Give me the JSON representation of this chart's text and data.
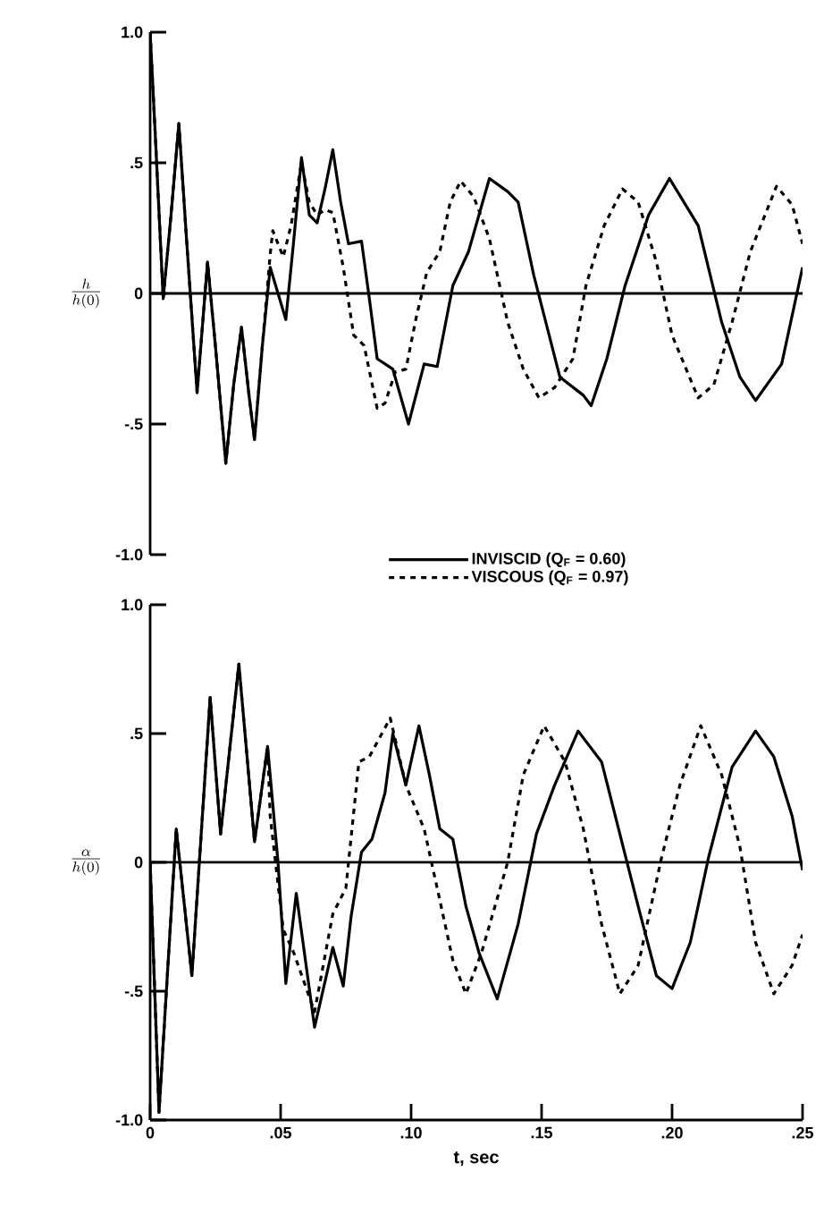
{
  "chart_data": [
    {
      "type": "line",
      "ylabel": "\\frac{h}{h(0)}",
      "xlim": [
        0,
        0.25
      ],
      "ylim": [
        -1,
        1
      ],
      "yticks": [
        {
          "value": 1,
          "label": "1.0"
        },
        {
          "value": 0.5,
          "label": ".5"
        },
        0,
        {
          "value": -0.5,
          "label": "-.5"
        },
        {
          "value": -1,
          "label": "-1.0"
        }
      ],
      "tick_labels": "y",
      "legend": "bottom",
      "marker": "none",
      "ref_lines": [
        {
          "axis": "y",
          "value": 0
        }
      ],
      "series": [
        {
          "name": "INVISCID (Q$_{F}$ = 0.60)",
          "color": "#000000",
          "line_style": "solid",
          "x": [
            0,
            0.002,
            0.005,
            0.008,
            0.011,
            0.014,
            0.018,
            0.022,
            0.025,
            0.029,
            0.032,
            0.035,
            0.038,
            0.04,
            0.043,
            0.046,
            0.049,
            0.052,
            0.055,
            0.058,
            0.061,
            0.064,
            0.067,
            0.07,
            0.073,
            0.076,
            0.081,
            0.084,
            0.087,
            0.093,
            0.099,
            0.105,
            0.11,
            0.116,
            0.122,
            0.13,
            0.137,
            0.141,
            0.147,
            0.157,
            0.166,
            0.169,
            0.175,
            0.182,
            0.191,
            0.199,
            0.21,
            0.219,
            0.226,
            0.232,
            0.242,
            0.25
          ],
          "values": [
            1.0,
            0.6,
            -0.02,
            0.3,
            0.65,
            0.2,
            -0.38,
            0.12,
            -0.2,
            -0.65,
            -0.35,
            -0.13,
            -0.4,
            -0.56,
            -0.2,
            0.1,
            0.0,
            -0.1,
            0.2,
            0.52,
            0.3,
            0.27,
            0.4,
            0.55,
            0.35,
            0.19,
            0.2,
            -0.02,
            -0.25,
            -0.29,
            -0.5,
            -0.27,
            -0.28,
            0.03,
            0.16,
            0.44,
            0.39,
            0.35,
            0.07,
            -0.32,
            -0.39,
            -0.43,
            -0.25,
            0.03,
            0.3,
            0.44,
            0.26,
            -0.11,
            -0.32,
            -0.41,
            -0.27,
            0.1
          ]
        },
        {
          "name": "VISCOUS (Q$_{F}$ = 0.97)",
          "color": "#000000",
          "line_style": "dashed",
          "x": [
            0,
            0.002,
            0.005,
            0.008,
            0.011,
            0.014,
            0.018,
            0.022,
            0.025,
            0.029,
            0.032,
            0.035,
            0.038,
            0.04,
            0.043,
            0.046,
            0.047,
            0.051,
            0.054,
            0.058,
            0.061,
            0.064,
            0.067,
            0.07,
            0.074,
            0.078,
            0.082,
            0.087,
            0.09,
            0.094,
            0.098,
            0.102,
            0.106,
            0.111,
            0.115,
            0.119,
            0.124,
            0.13,
            0.137,
            0.143,
            0.149,
            0.155,
            0.162,
            0.167,
            0.174,
            0.181,
            0.187,
            0.194,
            0.2,
            0.21,
            0.216,
            0.223,
            0.23,
            0.24,
            0.246,
            0.25
          ],
          "values": [
            1.0,
            0.6,
            -0.02,
            0.3,
            0.65,
            0.2,
            -0.38,
            0.12,
            -0.2,
            -0.65,
            -0.35,
            -0.13,
            -0.4,
            -0.56,
            -0.2,
            0.15,
            0.24,
            0.14,
            0.26,
            0.5,
            0.35,
            0.3,
            0.32,
            0.31,
            0.1,
            -0.16,
            -0.2,
            -0.44,
            -0.42,
            -0.3,
            -0.29,
            -0.09,
            0.08,
            0.16,
            0.35,
            0.43,
            0.37,
            0.21,
            -0.11,
            -0.29,
            -0.4,
            -0.36,
            -0.25,
            0.03,
            0.26,
            0.4,
            0.35,
            0.12,
            -0.16,
            -0.4,
            -0.35,
            -0.11,
            0.16,
            0.41,
            0.34,
            0.19
          ]
        }
      ]
    },
    {
      "type": "line",
      "ylabel": "\\frac{\\alpha}{h(0)}",
      "xlabel": "t, sec",
      "xlim": [
        0,
        0.25
      ],
      "ylim": [
        -1,
        1
      ],
      "xticks": [
        0,
        {
          "value": 0.05,
          "label": ".05"
        },
        {
          "value": 0.1,
          "label": ".10"
        },
        {
          "value": 0.15,
          "label": ".15"
        },
        {
          "value": 0.2,
          "label": ".20"
        },
        {
          "value": 0.25,
          "label": ".25"
        }
      ],
      "yticks": [
        {
          "value": 1,
          "label": "1.0"
        },
        {
          "value": 0.5,
          "label": ".5"
        },
        0,
        {
          "value": -0.5,
          "label": "-.5"
        },
        {
          "value": -1,
          "label": "-1.0"
        }
      ],
      "marker": "none",
      "ref_lines": [
        {
          "axis": "y",
          "value": 0
        }
      ],
      "series": [
        {
          "color": "#000000",
          "line_style": "solid",
          "x": [
            0,
            0.0034,
            0.01,
            0.016,
            0.023,
            0.027,
            0.034,
            0.04,
            0.045,
            0.049,
            0.052,
            0.056,
            0.063,
            0.07,
            0.074,
            0.077,
            0.081,
            0.085,
            0.09,
            0.093,
            0.098,
            0.103,
            0.107,
            0.111,
            0.116,
            0.121,
            0.126,
            0.133,
            0.141,
            0.148,
            0.155,
            0.164,
            0.173,
            0.18,
            0.187,
            0.194,
            0.2,
            0.207,
            0.214,
            0.223,
            0.232,
            0.239,
            0.246,
            0.25
          ],
          "values": [
            0,
            -0.97,
            0.13,
            -0.44,
            0.64,
            0.11,
            0.77,
            0.08,
            0.45,
            0,
            -0.47,
            -0.12,
            -0.64,
            -0.33,
            -0.48,
            -0.21,
            0.04,
            0.09,
            0.27,
            0.5,
            0.3,
            0.53,
            0.34,
            0.13,
            0.09,
            -0.17,
            -0.35,
            -0.53,
            -0.24,
            0.11,
            0.3,
            0.51,
            0.39,
            0.11,
            -0.17,
            -0.44,
            -0.49,
            -0.31,
            0.02,
            0.37,
            0.51,
            0.41,
            0.18,
            -0.03
          ]
        },
        {
          "color": "#000000",
          "line_style": "dashed",
          "x": [
            0,
            0.0034,
            0.01,
            0.016,
            0.023,
            0.027,
            0.034,
            0.04,
            0.045,
            0.046,
            0.051,
            0.055,
            0.063,
            0.07,
            0.075,
            0.08,
            0.084,
            0.092,
            0.098,
            0.105,
            0.11,
            0.116,
            0.121,
            0.127,
            0.137,
            0.143,
            0.151,
            0.159,
            0.166,
            0.173,
            0.18,
            0.187,
            0.196,
            0.203,
            0.211,
            0.219,
            0.226,
            0.232,
            0.239,
            0.246,
            0.25
          ],
          "values": [
            0,
            -0.97,
            0.13,
            -0.44,
            0.64,
            0.11,
            0.77,
            0.08,
            0.45,
            0.18,
            -0.26,
            -0.35,
            -0.58,
            -0.2,
            -0.1,
            0.39,
            0.41,
            0.56,
            0.3,
            0.13,
            -0.1,
            -0.38,
            -0.51,
            -0.35,
            0,
            0.34,
            0.53,
            0.39,
            0.13,
            -0.24,
            -0.51,
            -0.4,
            0.02,
            0.3,
            0.53,
            0.34,
            0.06,
            -0.31,
            -0.51,
            -0.4,
            -0.28
          ]
        }
      ]
    }
  ]
}
